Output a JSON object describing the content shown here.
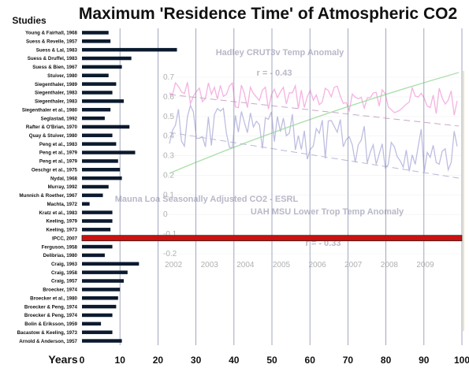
{
  "chart_data": {
    "type": "bar",
    "orientation": "horizontal",
    "title": "Maximum 'Residence Time' of Atmospheric CO2",
    "category_header": "Studies",
    "xlabel": "Years",
    "xlim": [
      0,
      100
    ],
    "xticks": [
      0,
      10,
      20,
      30,
      40,
      50,
      60,
      70,
      80,
      90,
      100
    ],
    "grid": "vertical",
    "categories": [
      "Young & Fairhall, 1968",
      "Suess & Revelle, 1957",
      "Suess & Lal, 1983",
      "Suess & Druffel, 1983",
      "Suess & Bien, 1967",
      "Stuiver, 1980",
      "Siegenthaler, 1989",
      "Siegenthaler, 1983",
      "Siegenthaler, 1983",
      "Siegenthaler et al., 1980",
      "Seglastad, 1992",
      "Rafter & O'Brian, 1970",
      "Quay & Stuiver, 1980",
      "Peng et al., 1983",
      "Peng et al., 1979",
      "Peng et al., 1979",
      "Oeschgr et al., 1975",
      "Nydal, 1968",
      "Murray, 1992",
      "Munnich & Roether, 1967",
      "Machta, 1972",
      "Kratz et al., 1983",
      "Keeling, 1979",
      "Keeling, 1973",
      "IPCC, 2007",
      "Ferguson, 1958",
      "Delibrias, 1980",
      "Craig, 1963",
      "Craig, 1958",
      "Craig, 1957",
      "Broecker, 1974",
      "Broecker et al., 1980",
      "Broecker & Peng, 1974",
      "Broecker & Peng, 1974",
      "Bolin & Eriksson, 1959",
      "Bacastow & Keeling, 1973",
      "Arnold & Anderson, 1957"
    ],
    "values": [
      7,
      7.5,
      25,
      13,
      10.5,
      7,
      9,
      8,
      11,
      7.5,
      6,
      12.5,
      8,
      9,
      14,
      9.5,
      10,
      10.5,
      7,
      5.5,
      2,
      8,
      8,
      7.5,
      100,
      8,
      6,
      15,
      12,
      11,
      10,
      9.5,
      9,
      8,
      5,
      8,
      10.5
    ],
    "highlight_category": "IPCC, 2007",
    "colors": {
      "bar": "#0b1a2e",
      "highlight": "#cc1111",
      "grid": "#8a90b0"
    },
    "overlay": {
      "note": "faded inset chart",
      "series": [
        {
          "name": "Hadley CRUT3v Temp Anomaly",
          "correlation": "r = - 0.43",
          "color": "#f29ad8"
        },
        {
          "name": "Mauna Loa Seasonally Adjusted CO2 - ESRL",
          "color": "#98d898"
        },
        {
          "name": "UAH MSU Lower Trop Temp Anomaly",
          "correlation": "r = - 0.33",
          "color": "#a8a8d8"
        }
      ],
      "y_ticks": [
        "0.7",
        "0.6",
        "0.5",
        "0.4",
        "0.3",
        "0.2",
        "0.1",
        "0",
        "-0.1",
        "-0.2"
      ],
      "x_ticks": [
        "2002",
        "2003",
        "2004",
        "2005",
        "2006",
        "2007",
        "2008",
        "2009"
      ]
    }
  }
}
